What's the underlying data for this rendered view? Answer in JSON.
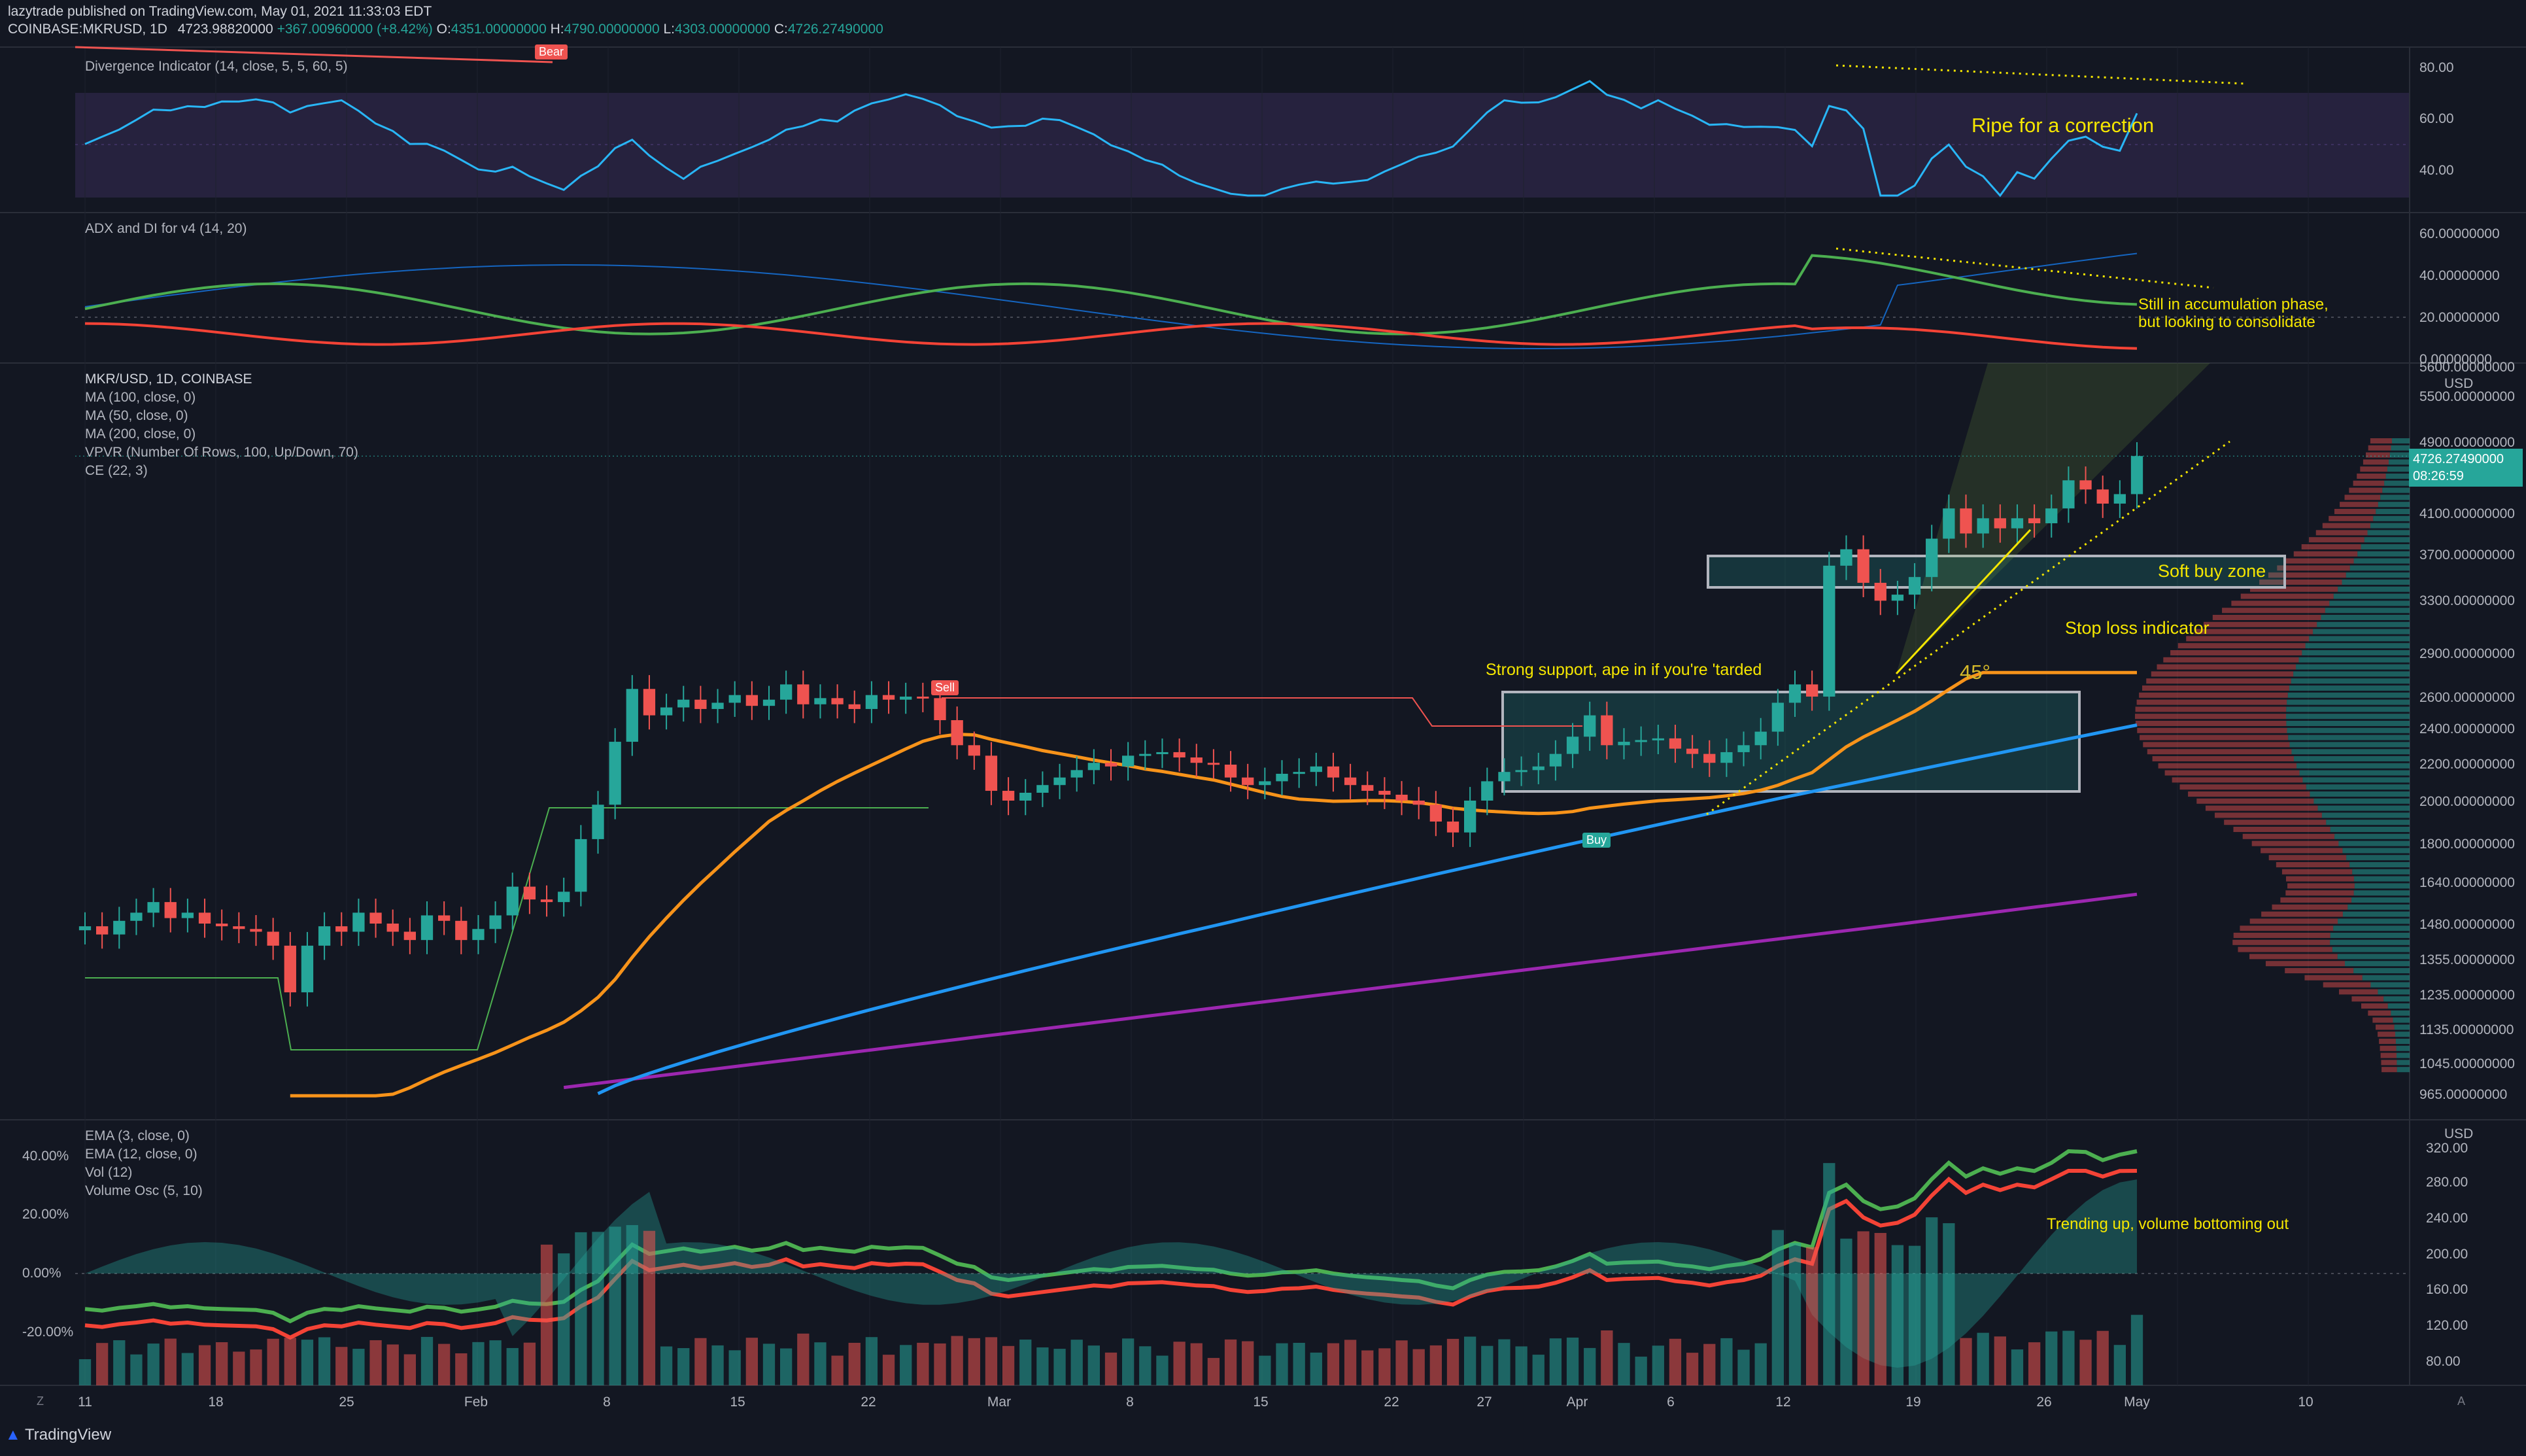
{
  "header": {
    "line1": "lazytrade published on TradingView.com, May 01, 2021 11:33:03 EDT",
    "symbol": "COINBASE:MKRUSD, 1D",
    "open_label": "4723.98820000",
    "change_label": "+367.00960000 (+8.42%)",
    "o_prefix": "O:",
    "o_value": "4351.00000000",
    "h_prefix": "H:",
    "h_value": "4790.00000000",
    "l_prefix": "L:",
    "l_value": "4303.00000000",
    "c_prefix": "C:",
    "c_value": "4726.27490000"
  },
  "colors": {
    "background": "#131722",
    "up": "#26a69a",
    "down": "#ef5350",
    "ma100": "#2196f3",
    "ma50": "#f7931a",
    "ma200": "#9c27b0",
    "annotation": "#f5e600",
    "divergence_band": "#7e57c2",
    "rsi_line": "#29b6f6",
    "adx_plus": "#4caf50",
    "adx_minus": "#f44336"
  },
  "panes": {
    "divergence": {
      "label": "Divergence Indicator (14, close, 5, 5, 60, 5)",
      "ticks": [
        "80.00",
        "60.00",
        "40.00"
      ],
      "bear_tag": "Bear"
    },
    "adx": {
      "label": "ADX and DI for v4 (14, 20)",
      "ticks": [
        "60.00000000",
        "40.00000000",
        "20.00000000",
        "0.00000000"
      ]
    },
    "price": {
      "labels": [
        "MKR/USD, 1D, COINBASE",
        "MA (100, close, 0)",
        "MA (50, close, 0)",
        "MA (200, close, 0)",
        "VPVR (Number Of Rows, 100, Up/Down, 70)",
        "CE (22, 3)"
      ],
      "currency": "USD",
      "ticks": [
        "5600.00000000",
        "5500.00000000",
        "4900.00000000",
        "4500.00000000",
        "4100.00000000",
        "3700.00000000",
        "3300.00000000",
        "2900.00000000",
        "2600.00000000",
        "2400.00000000",
        "2200.00000000",
        "2000.00000000",
        "1800.00000000",
        "1640.00000000",
        "1480.00000000",
        "1355.00000000",
        "1235.00000000",
        "1135.00000000",
        "1045.00000000",
        "965.00000000"
      ],
      "last_price": "4726.27490000",
      "countdown": "08:26:59",
      "sell_tag": "Sell",
      "buy_tag": "Buy",
      "angle_label": "45°"
    },
    "volume": {
      "labels": [
        "EMA (3, close, 0)",
        "EMA (12, close, 0)",
        "Vol (12)",
        "Volume Osc (5, 10)"
      ],
      "currency": "USD",
      "right_ticks": [
        "320.00",
        "280.00",
        "240.00",
        "200.00",
        "160.00",
        "120.00",
        "80.00"
      ],
      "left_ticks": [
        "40.00%",
        "20.00%",
        "0.00%",
        "-20.00%"
      ]
    }
  },
  "annotations": {
    "ripe": "Ripe for a correction",
    "accumulation_1": "Still in accumulation phase,",
    "accumulation_2": "but looking to consolidate",
    "soft_buy": "Soft buy zone",
    "stop_loss": "Stop loss indicator",
    "support": "Strong support, ape in if you're 'tarded",
    "trending": "Trending up, volume bottoming out"
  },
  "x_axis": {
    "ticks": [
      "11",
      "18",
      "25",
      "Feb",
      "8",
      "15",
      "22",
      "Mar",
      "8",
      "15",
      "22",
      "27",
      "Apr",
      "6",
      "12",
      "19",
      "26",
      "May",
      "10"
    ]
  },
  "footer": {
    "brand": "TradingView",
    "z_label": "Z",
    "a_label": "A"
  },
  "chart_data": {
    "type": "candlestick",
    "title": "MKR/USD, 1D, COINBASE",
    "x_start": "2021-01-11",
    "x_end": "2021-05-01",
    "closes": [
      1470,
      1440,
      1490,
      1520,
      1560,
      1500,
      1520,
      1480,
      1470,
      1460,
      1450,
      1400,
      1245,
      1400,
      1470,
      1450,
      1520,
      1480,
      1450,
      1420,
      1510,
      1490,
      1420,
      1460,
      1510,
      1620,
      1570,
      1560,
      1600,
      1820,
      1980,
      2320,
      2650,
      2480,
      2530,
      2580,
      2520,
      2560,
      2610,
      2540,
      2580,
      2680,
      2550,
      2590,
      2550,
      2520,
      2610,
      2580,
      2600,
      2590,
      2450,
      2300,
      2240,
      2050,
      2000,
      2040,
      2080,
      2120,
      2160,
      2200,
      2180,
      2240,
      2250,
      2260,
      2230,
      2200,
      2190,
      2120,
      2080,
      2100,
      2140,
      2150,
      2180,
      2120,
      2080,
      2050,
      2030,
      2000,
      1980,
      1900,
      1850,
      2000,
      2100,
      2150,
      2160,
      2180,
      2250,
      2350,
      2480,
      2300,
      2320,
      2330,
      2340,
      2280,
      2250,
      2200,
      2260,
      2300,
      2380,
      2560,
      2680,
      2600,
      3600,
      3750,
      3450,
      3300,
      3350,
      3500,
      3850,
      4150,
      3900,
      4050,
      3950,
      4050,
      4000,
      4150,
      4450,
      4350,
      4200,
      4300,
      4726.2749
    ],
    "closes_note": "",
    "ma50_end": 2760,
    "ma100_end": 2420,
    "ma200_end": 1590,
    "volume_axis": [
      "320.00",
      "80.00"
    ],
    "annotation_angle": "45°"
  }
}
